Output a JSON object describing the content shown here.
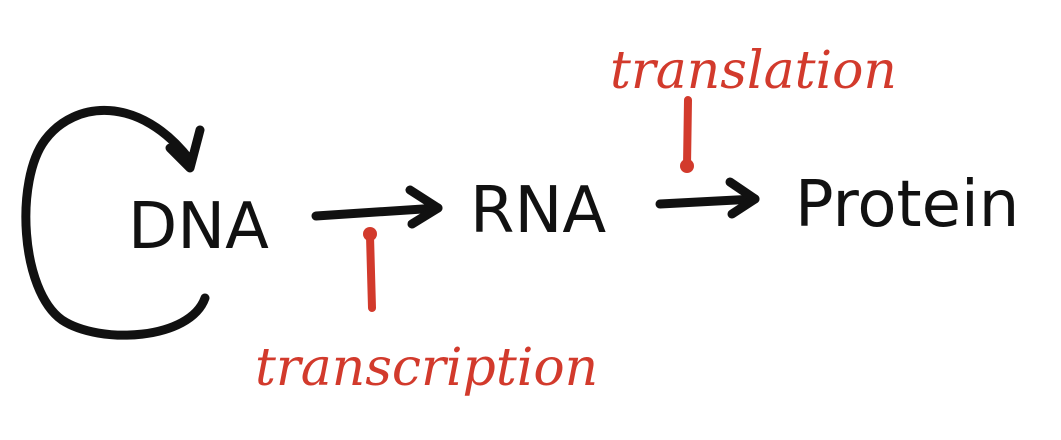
{
  "nodes": {
    "dna": "DNA",
    "rna": "RNA",
    "protein": "Protein"
  },
  "labels": {
    "transcription": "transcription",
    "translation": "translation"
  },
  "colors": {
    "ink": "#111111",
    "annotation": "#d23a2c"
  }
}
